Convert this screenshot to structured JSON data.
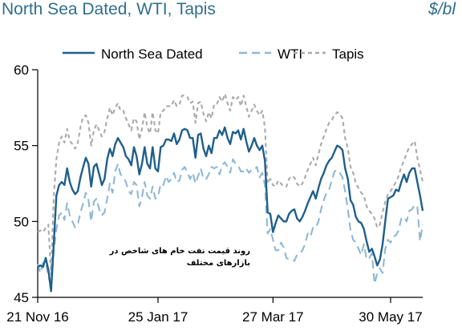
{
  "chart_data": {
    "type": "line",
    "title": "North Sea Dated, WTI, Tapis",
    "unit": "$/bl",
    "annotation": "روند قیمت نفت خام های شاخص در بازارهای مختلف",
    "ylim": [
      45,
      60
    ],
    "yticks": [
      "45",
      "50",
      "55",
      "60"
    ],
    "xticks": [
      {
        "label": "21 Nov 16",
        "index": 0
      },
      {
        "label": "25 Jan 17",
        "index": 45
      },
      {
        "label": "27 Mar 17",
        "index": 88
      },
      {
        "label": "30 May 17",
        "index": 132
      }
    ],
    "legend_position": "top",
    "grid": false,
    "series": [
      {
        "name": "North Sea Dated",
        "color": "#1f5f8b",
        "dash": "solid",
        "values": [
          47.0,
          47.1,
          47.0,
          47.6,
          46.8,
          45.4,
          48.5,
          51.7,
          52.4,
          52.6,
          52.4,
          53.5,
          52.6,
          52.1,
          51.8,
          52.0,
          52.9,
          53.6,
          54.2,
          53.8,
          52.3,
          53.6,
          53.8,
          53.1,
          52.4,
          52.8,
          54.1,
          54.8,
          54.3,
          55.1,
          55.5,
          55.2,
          54.9,
          54.3,
          54.1,
          53.7,
          54.9,
          54.3,
          53.1,
          53.8,
          54.9,
          53.8,
          53.5,
          54.9,
          53.5,
          53.3,
          54.9,
          55.0,
          55.4,
          55.4,
          55.3,
          55.8,
          55.1,
          55.4,
          56.0,
          56.1,
          56.0,
          55.5,
          55.5,
          54.2,
          55.7,
          55.8,
          54.8,
          54.3,
          55.0,
          54.5,
          55.5,
          55.5,
          56.0,
          55.7,
          56.2,
          55.5,
          55.1,
          55.9,
          55.8,
          56.0,
          55.4,
          56.1,
          55.3,
          54.6,
          55.0,
          55.5,
          55.0,
          54.7,
          55.0,
          54.0,
          50.6,
          50.5,
          49.3,
          49.9,
          50.4,
          50.2,
          50.0,
          50.0,
          50.5,
          50.7,
          50.8,
          50.2,
          50.0,
          50.3,
          50.7,
          51.2,
          51.6,
          52.0,
          51.5,
          52.2,
          52.8,
          53.2,
          53.7,
          54.0,
          54.2,
          54.6,
          55.0,
          54.9,
          54.7,
          53.5,
          52.8,
          51.4,
          51.1,
          50.3,
          50.0,
          49.9,
          49.5,
          48.7,
          48.0,
          48.2,
          47.7,
          47.1,
          47.5,
          48.5,
          50.0,
          51.5,
          51.6,
          51.7,
          52.1,
          52.0,
          52.6,
          53.1,
          52.6,
          53.2,
          53.5,
          53.5,
          52.6,
          51.7,
          50.7
        ]
      },
      {
        "name": "WTI",
        "color": "#8fb8d5",
        "dash": "10,6",
        "values": [
          47.2,
          46.6,
          47.3,
          47.3,
          46.4,
          45.7,
          48.0,
          49.5,
          50.4,
          50.6,
          50.1,
          51.2,
          50.4,
          50.0,
          49.6,
          49.8,
          50.6,
          51.2,
          51.9,
          51.4,
          50.0,
          51.3,
          51.5,
          50.8,
          50.4,
          50.6,
          51.5,
          52.5,
          51.9,
          53.3,
          53.8,
          53.1,
          52.9,
          52.6,
          52.0,
          51.8,
          52.6,
          52.4,
          51.0,
          51.6,
          52.6,
          51.7,
          51.5,
          52.3,
          51.5,
          51.6,
          52.5,
          52.4,
          53.0,
          52.6,
          52.8,
          53.2,
          52.6,
          52.7,
          53.4,
          53.6,
          53.2,
          52.8,
          53.2,
          52.5,
          53.0,
          53.5,
          52.8,
          52.8,
          53.1,
          53.6,
          53.5,
          53.6,
          53.1,
          53.7,
          53.9,
          53.6,
          53.2,
          54.1,
          53.8,
          53.7,
          53.3,
          53.3,
          53.5,
          53.2,
          53.4,
          53.4,
          53.6,
          52.9,
          53.2,
          52.4,
          49.2,
          49.5,
          48.8,
          48.1,
          48.1,
          48.6,
          48.3,
          47.6,
          47.5,
          47.5,
          47.4,
          47.8,
          47.9,
          48.1,
          48.5,
          49.2,
          49.0,
          49.6,
          49.6,
          50.0,
          50.8,
          51.4,
          51.9,
          52.1,
          52.7,
          53.3,
          53.4,
          53.2,
          52.9,
          52.0,
          50.8,
          49.4,
          48.8,
          48.6,
          48.2,
          47.8,
          48.5,
          47.5,
          47.6,
          47.9,
          45.9,
          46.6,
          46.9,
          46.6,
          48.2,
          48.8,
          48.6,
          49.0,
          49.1,
          49.4,
          50.2,
          50.3,
          50.0,
          50.7,
          50.8,
          51.1,
          51.0,
          48.7,
          49.8
        ]
      },
      {
        "name": "Tapis",
        "color": "#aaaaaa",
        "dash": "5,4",
        "values": [
          49.3,
          49.4,
          49.3,
          49.6,
          49.8,
          46.5,
          51.6,
          54.1,
          55.2,
          55.6,
          55.2,
          56.1,
          55.3,
          55.1,
          54.8,
          55.2,
          56.2,
          56.9,
          57.0,
          56.5,
          55.0,
          56.0,
          56.4,
          56.0,
          55.6,
          55.9,
          56.8,
          57.5,
          57.0,
          57.5,
          57.8,
          57.3,
          57.3,
          56.8,
          56.4,
          56.0,
          56.8,
          56.6,
          55.4,
          56.1,
          57.2,
          56.2,
          55.8,
          57.2,
          56.0,
          55.8,
          57.2,
          57.3,
          57.6,
          57.6,
          57.6,
          58.0,
          57.6,
          57.7,
          58.3,
          58.3,
          58.2,
          57.8,
          57.9,
          56.5,
          57.8,
          57.9,
          57.1,
          56.6,
          57.2,
          56.8,
          57.7,
          57.7,
          58.2,
          57.9,
          58.4,
          57.8,
          57.3,
          58.2,
          58.0,
          58.2,
          57.6,
          58.3,
          57.6,
          56.9,
          57.3,
          57.7,
          57.3,
          57.0,
          57.3,
          56.2,
          52.5,
          52.8,
          52.4,
          52.3,
          52.7,
          52.5,
          52.3,
          52.3,
          52.8,
          53.0,
          52.9,
          52.5,
          52.3,
          52.5,
          52.9,
          53.4,
          53.8,
          54.2,
          53.7,
          54.4,
          55.1,
          55.6,
          56.1,
          56.5,
          56.7,
          57.0,
          57.2,
          57.1,
          56.8,
          55.5,
          54.8,
          53.6,
          53.2,
          52.5,
          52.2,
          51.9,
          51.7,
          51.0,
          50.7,
          50.5,
          50.2,
          49.6,
          49.8,
          50.6,
          51.3,
          51.8,
          52.0,
          52.3,
          52.6,
          53.0,
          53.6,
          54.0,
          54.5,
          54.9,
          55.1,
          55.3,
          54.2,
          53.4,
          52.6
        ]
      }
    ]
  }
}
